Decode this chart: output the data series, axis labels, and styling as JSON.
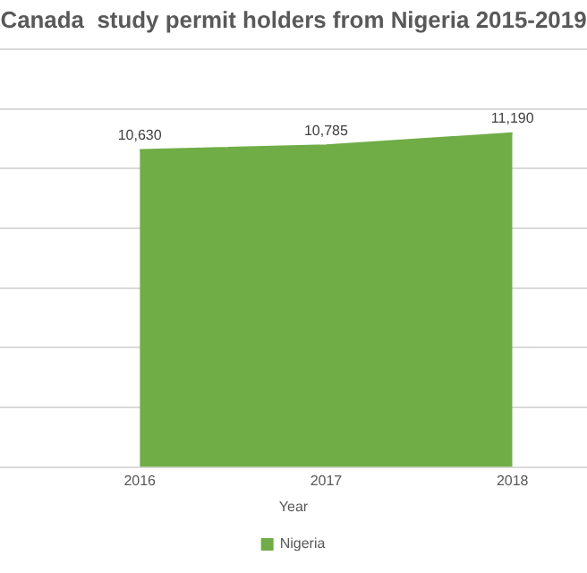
{
  "chart_data": {
    "type": "area",
    "title": "Canada  study permit holders from Nigeria 2015-2019",
    "xlabel": "Year",
    "x": [
      2016,
      2017,
      2018
    ],
    "series": [
      {
        "name": "Nigeria",
        "color": "#70ad47",
        "values": [
          10630,
          10785,
          11190
        ],
        "value_labels": [
          "10,630",
          "10,785",
          "11,190"
        ]
      }
    ],
    "xlim": [
      2015.25,
      2018.4
    ],
    "xticks": [
      2016,
      2017,
      2018
    ],
    "ylim": [
      0,
      14000
    ],
    "yticks": [
      {
        "value": 0,
        "label": null
      },
      {
        "value": 2000,
        "label": null
      },
      {
        "value": 4000,
        "label": null
      },
      {
        "value": 6000,
        "label": null
      },
      {
        "value": 8000,
        "label": null
      },
      {
        "value": 10000,
        "label": null
      },
      {
        "value": 12000,
        "label": null
      },
      {
        "value": 14000,
        "label": null
      }
    ],
    "tick_labels": "x",
    "grid": "y",
    "legend": "bottom"
  }
}
